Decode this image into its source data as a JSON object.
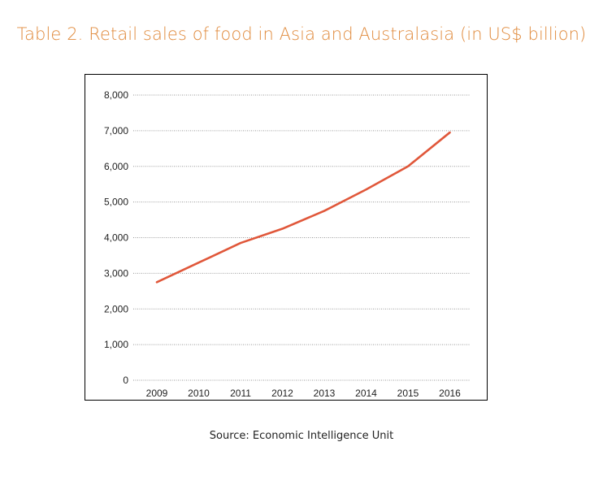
{
  "page": {
    "title": "Table 2. Retail sales of food in Asia and Australasia (in US$ billion)",
    "source": "Source: Economic Intelligence Unit"
  },
  "colors": {
    "title": "#e08a3c",
    "line": "#e0573a",
    "grid": "#9a9a9a"
  },
  "chart_data": {
    "type": "line",
    "title": "",
    "xlabel": "",
    "ylabel": "",
    "x": [
      "2009",
      "2010",
      "2011",
      "2012",
      "2013",
      "2014",
      "2015",
      "2016"
    ],
    "series": [
      {
        "values": [
          2750,
          3300,
          3850,
          4250,
          4750,
          5350,
          6000,
          6950
        ]
      }
    ],
    "ylim": [
      0,
      8000
    ],
    "yticks": [
      "0",
      "1,000",
      "2,000",
      "3,000",
      "4,000",
      "5,000",
      "6,000",
      "7,000",
      "8,000"
    ],
    "grid": "horizontal-dotted",
    "legend": "none"
  }
}
